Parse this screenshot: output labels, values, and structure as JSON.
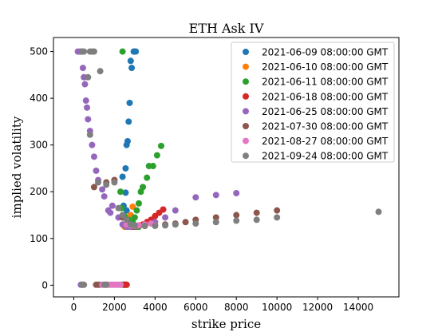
{
  "chart_data": {
    "type": "scatter",
    "title": "ETH Ask IV",
    "xlabel": "strike price",
    "ylabel": "implied volatility",
    "xlim": [
      -1000,
      16000
    ],
    "ylim": [
      -25,
      530
    ],
    "xticks": [
      0,
      2000,
      4000,
      6000,
      8000,
      10000,
      12000,
      14000
    ],
    "yticks": [
      0,
      100,
      200,
      300,
      400,
      500
    ],
    "xtick_labels": [
      "0",
      "2000",
      "4000",
      "6000",
      "8000",
      "10000",
      "12000",
      "14000"
    ],
    "ytick_labels": [
      "0",
      "100",
      "200",
      "300",
      "400",
      "500"
    ],
    "legend_position": "top-right",
    "series": [
      {
        "name": "2021-06-09 08:00:00 GMT",
        "color": "#1f77b4",
        "points": [
          [
            2800,
            480
          ],
          [
            2850,
            465
          ],
          [
            2950,
            500
          ],
          [
            3000,
            500
          ],
          [
            3050,
            500
          ],
          [
            2750,
            390
          ],
          [
            2700,
            350
          ],
          [
            2650,
            308
          ],
          [
            2600,
            300
          ],
          [
            2550,
            250
          ],
          [
            2400,
            232
          ],
          [
            2550,
            198
          ],
          [
            2450,
            170
          ],
          [
            2600,
            160
          ],
          [
            2650,
            140
          ],
          [
            2700,
            130
          ],
          [
            2750,
            125
          ],
          [
            2500,
            1
          ],
          [
            2600,
            1
          ]
        ]
      },
      {
        "name": "2021-06-10 08:00:00 GMT",
        "color": "#ff7f0e",
        "points": [
          [
            2900,
            168
          ],
          [
            2800,
            150
          ],
          [
            2700,
            140
          ],
          [
            2650,
            132
          ],
          [
            2600,
            128
          ],
          [
            2500,
            125
          ],
          [
            2550,
            1
          ],
          [
            2450,
            1
          ]
        ]
      },
      {
        "name": "2021-06-11 08:00:00 GMT",
        "color": "#2ca02c",
        "points": [
          [
            2400,
            500
          ],
          [
            2300,
            200
          ],
          [
            2350,
            165
          ],
          [
            2500,
            148
          ],
          [
            2700,
            140
          ],
          [
            2800,
            133
          ],
          [
            2900,
            135
          ],
          [
            3000,
            145
          ],
          [
            3100,
            160
          ],
          [
            3200,
            175
          ],
          [
            3300,
            200
          ],
          [
            3400,
            210
          ],
          [
            3600,
            230
          ],
          [
            3700,
            255
          ],
          [
            3900,
            255
          ],
          [
            4100,
            278
          ],
          [
            4300,
            298
          ],
          [
            3000,
            128
          ],
          [
            3100,
            125
          ],
          [
            3200,
            125
          ],
          [
            2450,
            1
          ],
          [
            2350,
            1
          ]
        ]
      },
      {
        "name": "2021-06-18 08:00:00 GMT",
        "color": "#d62728",
        "points": [
          [
            2700,
            128
          ],
          [
            2800,
            125
          ],
          [
            2900,
            125
          ],
          [
            3000,
            126
          ],
          [
            3200,
            128
          ],
          [
            3400,
            130
          ],
          [
            3600,
            135
          ],
          [
            3800,
            140
          ],
          [
            4000,
            148
          ],
          [
            4200,
            155
          ],
          [
            4400,
            162
          ],
          [
            2600,
            1
          ],
          [
            2500,
            1
          ]
        ]
      },
      {
        "name": "2021-06-25 08:00:00 GMT",
        "color": "#9467bd",
        "points": [
          [
            200,
            500
          ],
          [
            300,
            500
          ],
          [
            400,
            500
          ],
          [
            450,
            465
          ],
          [
            500,
            445
          ],
          [
            550,
            430
          ],
          [
            600,
            395
          ],
          [
            650,
            380
          ],
          [
            700,
            355
          ],
          [
            800,
            330
          ],
          [
            900,
            300
          ],
          [
            1000,
            275
          ],
          [
            1100,
            245
          ],
          [
            1200,
            225
          ],
          [
            1400,
            205
          ],
          [
            1500,
            190
          ],
          [
            1700,
            160
          ],
          [
            1800,
            155
          ],
          [
            1900,
            170
          ],
          [
            2000,
            225
          ],
          [
            2200,
            145
          ],
          [
            2400,
            130
          ],
          [
            2600,
            125
          ],
          [
            2800,
            125
          ],
          [
            3000,
            125
          ],
          [
            3500,
            128
          ],
          [
            4000,
            135
          ],
          [
            4500,
            145
          ],
          [
            5000,
            160
          ],
          [
            6000,
            188
          ],
          [
            7000,
            193
          ],
          [
            8000,
            197
          ],
          [
            350,
            1
          ],
          [
            450,
            1
          ],
          [
            1300,
            1
          ]
        ]
      },
      {
        "name": "2021-07-30 08:00:00 GMT",
        "color": "#8c564b",
        "points": [
          [
            1000,
            210
          ],
          [
            1600,
            220
          ],
          [
            2000,
            225
          ],
          [
            2400,
            145
          ],
          [
            2600,
            130
          ],
          [
            3000,
            125
          ],
          [
            3500,
            127
          ],
          [
            4000,
            128
          ],
          [
            4500,
            130
          ],
          [
            5000,
            132
          ],
          [
            5500,
            135
          ],
          [
            6000,
            140
          ],
          [
            7000,
            145
          ],
          [
            8000,
            150
          ],
          [
            9000,
            155
          ],
          [
            10000,
            160
          ],
          [
            1100,
            1
          ],
          [
            1200,
            1
          ]
        ]
      },
      {
        "name": "2021-08-27 08:00:00 GMT",
        "color": "#e377c2",
        "points": [
          [
            2600,
            130
          ],
          [
            2800,
            128
          ],
          [
            3000,
            127
          ],
          [
            3200,
            128
          ],
          [
            3500,
            130
          ],
          [
            3800,
            132
          ],
          [
            4000,
            128
          ],
          [
            1400,
            1
          ],
          [
            1500,
            1
          ],
          [
            1600,
            1
          ],
          [
            1700,
            1
          ],
          [
            1800,
            1
          ],
          [
            1900,
            1
          ],
          [
            2000,
            1
          ],
          [
            2100,
            1
          ],
          [
            2200,
            1
          ],
          [
            2300,
            1
          ]
        ]
      },
      {
        "name": "2021-09-24 08:00:00 GMT",
        "color": "#7f7f7f",
        "points": [
          [
            400,
            500
          ],
          [
            500,
            500
          ],
          [
            800,
            500
          ],
          [
            900,
            500
          ],
          [
            1000,
            500
          ],
          [
            1300,
            458
          ],
          [
            700,
            445
          ],
          [
            800,
            322
          ],
          [
            1200,
            220
          ],
          [
            1600,
            215
          ],
          [
            2000,
            220
          ],
          [
            2200,
            165
          ],
          [
            2400,
            150
          ],
          [
            2600,
            140
          ],
          [
            2800,
            130
          ],
          [
            3000,
            128
          ],
          [
            3500,
            127
          ],
          [
            4000,
            127
          ],
          [
            4500,
            128
          ],
          [
            5000,
            130
          ],
          [
            6000,
            132
          ],
          [
            7000,
            135
          ],
          [
            8000,
            138
          ],
          [
            9000,
            140
          ],
          [
            10000,
            145
          ],
          [
            15000,
            157
          ],
          [
            400,
            1
          ],
          [
            500,
            1
          ],
          [
            1500,
            1
          ],
          [
            1600,
            1
          ]
        ]
      }
    ]
  }
}
